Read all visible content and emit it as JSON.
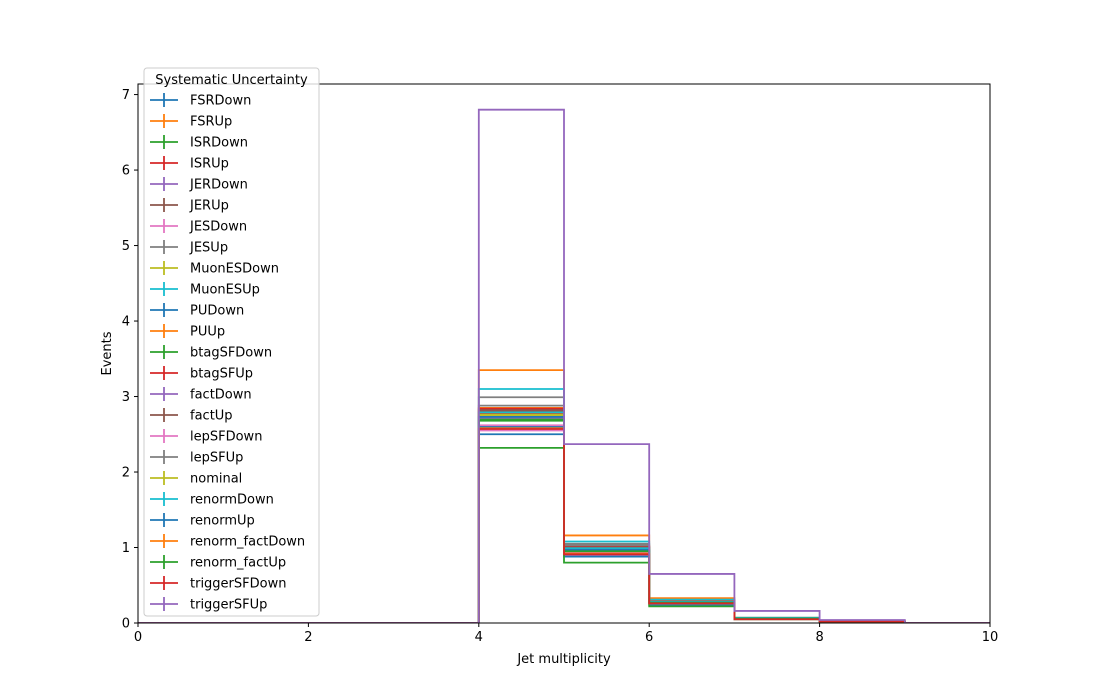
{
  "chart_data": {
    "type": "line",
    "style": "step-histogram",
    "xlabel": "Jet multiplicity",
    "ylabel": "Events",
    "xlim": [
      0,
      10
    ],
    "ylim": [
      0,
      7.14
    ],
    "x_ticks": [
      "0",
      "2",
      "4",
      "6",
      "8",
      "10"
    ],
    "y_ticks": [
      "0",
      "1",
      "2",
      "3",
      "4",
      "5",
      "6",
      "7"
    ],
    "bin_edges": [
      0,
      1,
      2,
      3,
      4,
      5,
      6,
      7,
      8,
      9,
      10
    ],
    "legend": {
      "title": "Systematic Uncertainty",
      "placement": "upper-left"
    },
    "grid": false,
    "series": [
      {
        "name": "FSRDown",
        "color": "#1f77b4",
        "values": [
          0,
          0,
          0,
          0,
          2.6,
          0.95,
          0.26,
          0.06,
          0.02,
          0
        ]
      },
      {
        "name": "FSRUp",
        "color": "#ff7f0e",
        "values": [
          0,
          0,
          0,
          0,
          3.35,
          1.16,
          0.33,
          0.07,
          0.02,
          0
        ]
      },
      {
        "name": "ISRDown",
        "color": "#2ca02c",
        "values": [
          0,
          0,
          0,
          0,
          2.7,
          0.96,
          0.27,
          0.06,
          0.02,
          0
        ]
      },
      {
        "name": "ISRUp",
        "color": "#d62728",
        "values": [
          0,
          0,
          0,
          0,
          2.78,
          0.99,
          0.28,
          0.06,
          0.02,
          0
        ]
      },
      {
        "name": "JERDown",
        "color": "#9467bd",
        "values": [
          0,
          0,
          0,
          0,
          2.74,
          0.97,
          0.27,
          0.06,
          0.02,
          0
        ]
      },
      {
        "name": "JERUp",
        "color": "#8c564b",
        "values": [
          0,
          0,
          0,
          0,
          2.8,
          1.0,
          0.28,
          0.06,
          0.02,
          0
        ]
      },
      {
        "name": "JESDown",
        "color": "#e377c2",
        "values": [
          0,
          0,
          0,
          0,
          2.55,
          0.9,
          0.25,
          0.05,
          0.02,
          0
        ]
      },
      {
        "name": "JESUp",
        "color": "#7f7f7f",
        "values": [
          0,
          0,
          0,
          0,
          2.99,
          1.05,
          0.3,
          0.07,
          0.02,
          0
        ]
      },
      {
        "name": "MuonESDown",
        "color": "#bcbd22",
        "values": [
          0,
          0,
          0,
          0,
          2.75,
          0.98,
          0.27,
          0.06,
          0.02,
          0
        ]
      },
      {
        "name": "MuonESUp",
        "color": "#17becf",
        "values": [
          0,
          0,
          0,
          0,
          3.1,
          1.08,
          0.31,
          0.07,
          0.02,
          0
        ]
      },
      {
        "name": "PUDown",
        "color": "#1f77b4",
        "values": [
          0,
          0,
          0,
          0,
          2.5,
          0.88,
          0.24,
          0.05,
          0.02,
          0
        ]
      },
      {
        "name": "PUUp",
        "color": "#ff7f0e",
        "values": [
          0,
          0,
          0,
          0,
          2.85,
          1.02,
          0.29,
          0.06,
          0.02,
          0
        ]
      },
      {
        "name": "btagSFDown",
        "color": "#2ca02c",
        "values": [
          0,
          0,
          0,
          0,
          2.32,
          0.8,
          0.22,
          0.05,
          0.01,
          0
        ]
      },
      {
        "name": "btagSFUp",
        "color": "#d62728",
        "values": [
          0,
          0,
          0,
          0,
          2.84,
          1.01,
          0.29,
          0.06,
          0.02,
          0
        ]
      },
      {
        "name": "factDown",
        "color": "#9467bd",
        "values": [
          0,
          0,
          0,
          0,
          2.72,
          0.96,
          0.27,
          0.06,
          0.02,
          0
        ]
      },
      {
        "name": "factUp",
        "color": "#8c564b",
        "values": [
          0,
          0,
          0,
          0,
          2.82,
          1.0,
          0.28,
          0.06,
          0.02,
          0
        ]
      },
      {
        "name": "lepSFDown",
        "color": "#e377c2",
        "values": [
          0,
          0,
          0,
          0,
          2.62,
          0.93,
          0.26,
          0.06,
          0.02,
          0
        ]
      },
      {
        "name": "lepSFUp",
        "color": "#7f7f7f",
        "values": [
          0,
          0,
          0,
          0,
          2.88,
          1.03,
          0.29,
          0.06,
          0.02,
          0
        ]
      },
      {
        "name": "nominal",
        "color": "#bcbd22",
        "values": [
          0,
          0,
          0,
          0,
          2.76,
          0.98,
          0.28,
          0.06,
          0.02,
          0
        ]
      },
      {
        "name": "renormDown",
        "color": "#17becf",
        "values": [
          0,
          0,
          0,
          0,
          2.79,
          0.99,
          0.28,
          0.06,
          0.02,
          0
        ]
      },
      {
        "name": "renormUp",
        "color": "#1f77b4",
        "values": [
          0,
          0,
          0,
          0,
          2.73,
          0.97,
          0.27,
          0.06,
          0.02,
          0
        ]
      },
      {
        "name": "renorm_factDown",
        "color": "#ff7f0e",
        "values": [
          0,
          0,
          0,
          0,
          2.58,
          0.92,
          0.26,
          0.05,
          0.02,
          0
        ]
      },
      {
        "name": "renorm_factUp",
        "color": "#2ca02c",
        "values": [
          0,
          0,
          0,
          0,
          2.68,
          0.95,
          0.27,
          0.06,
          0.02,
          0
        ]
      },
      {
        "name": "triggerSFDown",
        "color": "#d62728",
        "values": [
          0,
          0,
          0,
          0,
          2.57,
          0.91,
          0.26,
          0.05,
          0.02,
          0
        ]
      },
      {
        "name": "triggerSFUp",
        "color": "#9467bd",
        "values": [
          0,
          0,
          0,
          0,
          6.8,
          2.37,
          0.65,
          0.16,
          0.04,
          0
        ]
      }
    ]
  }
}
